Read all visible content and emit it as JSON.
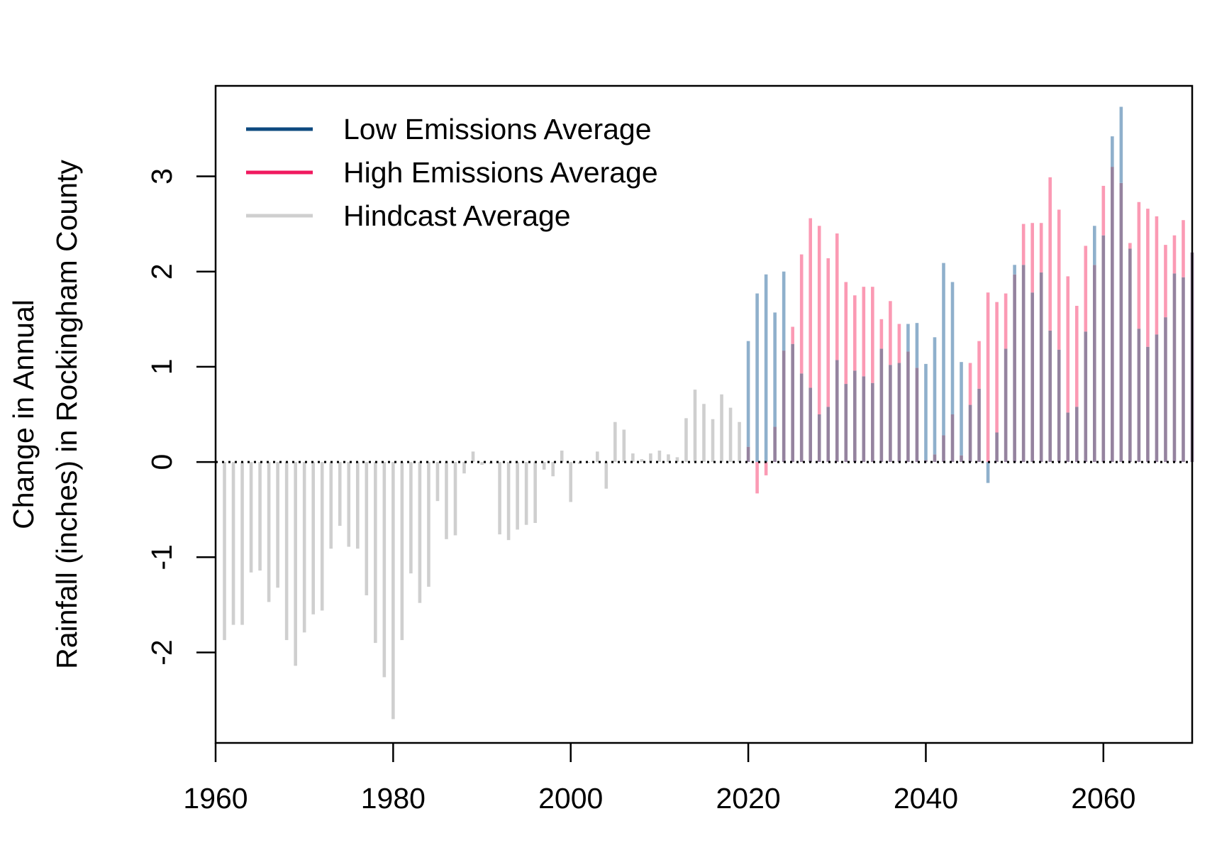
{
  "chart_data": {
    "type": "bar",
    "title": "",
    "xlabel": "",
    "ylabel": [
      "Change in Annual",
      "Rainfall (inches) in Rockingham County"
    ],
    "xlim": [
      1960,
      2070
    ],
    "ylim": [
      -2.95,
      3.95
    ],
    "x_ticks": [
      "1960",
      "1980",
      "2000",
      "2020",
      "2040",
      "2060"
    ],
    "y_ticks": [
      "-2",
      "-1",
      "0",
      "1",
      "2",
      "3"
    ],
    "reference_line": 0,
    "grid": false,
    "legend_position": "top-left",
    "colors": {
      "low": "#0d4a7f",
      "high": "#f0195f",
      "hindcast": "#cfcfcf",
      "low_bar": "#8fb0cc",
      "high_bar": "#fb9ab4",
      "overlap_bar": "#95839f"
    },
    "series": [
      {
        "name": "Low Emissions Average",
        "x": [
          2020,
          2021,
          2022,
          2023,
          2024,
          2025,
          2026,
          2027,
          2028,
          2029,
          2030,
          2031,
          2032,
          2033,
          2034,
          2035,
          2036,
          2037,
          2038,
          2039,
          2040,
          2041,
          2042,
          2043,
          2044,
          2045,
          2046,
          2047,
          2048,
          2049,
          2050,
          2051,
          2052,
          2053,
          2054,
          2055,
          2056,
          2057,
          2058,
          2059,
          2060,
          2061,
          2062,
          2063,
          2064,
          2065,
          2066,
          2067,
          2068,
          2069,
          2070
        ],
        "values": [
          1.27,
          1.77,
          1.97,
          1.57,
          2.0,
          1.24,
          0.93,
          0.78,
          0.5,
          0.58,
          1.07,
          0.82,
          0.96,
          0.9,
          0.83,
          1.19,
          1.02,
          1.04,
          1.45,
          1.46,
          1.03,
          1.31,
          2.09,
          1.89,
          1.05,
          0.6,
          0.77,
          -0.22,
          0.31,
          1.19,
          2.07,
          2.07,
          1.78,
          1.99,
          1.38,
          1.18,
          0.52,
          0.58,
          1.37,
          2.48,
          2.38,
          3.42,
          3.73,
          2.24,
          1.4,
          1.21,
          1.34,
          1.52,
          1.98,
          1.94,
          2.2
        ]
      },
      {
        "name": "High Emissions Average",
        "x": [
          2020,
          2021,
          2022,
          2023,
          2024,
          2025,
          2026,
          2027,
          2028,
          2029,
          2030,
          2031,
          2032,
          2033,
          2034,
          2035,
          2036,
          2037,
          2038,
          2039,
          2040,
          2041,
          2042,
          2043,
          2044,
          2045,
          2046,
          2047,
          2048,
          2049,
          2050,
          2051,
          2052,
          2053,
          2054,
          2055,
          2056,
          2057,
          2058,
          2059,
          2060,
          2061,
          2062,
          2063,
          2064,
          2065,
          2066,
          2067,
          2068,
          2069,
          2070
        ],
        "values": [
          0.16,
          -0.33,
          -0.14,
          0.37,
          1.17,
          1.42,
          2.18,
          2.56,
          2.48,
          2.14,
          2.4,
          1.89,
          1.75,
          1.84,
          1.84,
          1.5,
          1.69,
          1.45,
          1.16,
          0.99,
          0.02,
          0.08,
          0.28,
          0.5,
          0.07,
          1.04,
          1.27,
          1.78,
          1.68,
          1.77,
          1.97,
          2.5,
          2.51,
          2.51,
          2.99,
          2.65,
          1.95,
          1.64,
          2.27,
          2.07,
          2.9,
          3.1,
          2.93,
          2.3,
          2.73,
          2.66,
          2.58,
          2.28,
          2.38,
          2.54,
          2.2
        ]
      },
      {
        "name": "Hindcast Average",
        "x": [
          1961,
          1962,
          1963,
          1964,
          1965,
          1966,
          1967,
          1968,
          1969,
          1970,
          1971,
          1972,
          1973,
          1974,
          1975,
          1976,
          1977,
          1978,
          1979,
          1980,
          1981,
          1982,
          1983,
          1984,
          1985,
          1986,
          1987,
          1988,
          1989,
          1990,
          1991,
          1992,
          1993,
          1994,
          1995,
          1996,
          1997,
          1998,
          1999,
          2000,
          2001,
          2002,
          2003,
          2004,
          2005,
          2006,
          2007,
          2008,
          2009,
          2010,
          2011,
          2012,
          2013,
          2014,
          2015,
          2016,
          2017,
          2018,
          2019
        ],
        "values": [
          -1.87,
          -1.71,
          -1.71,
          -1.16,
          -1.14,
          -1.47,
          -1.32,
          -1.87,
          -2.14,
          -1.79,
          -1.6,
          -1.56,
          -0.91,
          -0.67,
          -0.89,
          -0.91,
          -1.4,
          -1.9,
          -2.26,
          -2.7,
          -1.87,
          -1.17,
          -1.48,
          -1.31,
          -0.41,
          -0.81,
          -0.77,
          -0.12,
          0.11,
          -0.03,
          -0.02,
          -0.76,
          -0.82,
          -0.71,
          -0.66,
          -0.64,
          -0.08,
          -0.15,
          0.12,
          -0.42,
          -0.02,
          0.0,
          0.11,
          -0.28,
          0.42,
          0.34,
          0.09,
          0.03,
          0.09,
          0.12,
          0.08,
          0.05,
          0.46,
          0.76,
          0.61,
          0.45,
          0.71,
          0.57,
          0.42
        ]
      }
    ]
  },
  "legend": {
    "items": [
      {
        "label": "Low Emissions Average",
        "color": "#0d4a7f"
      },
      {
        "label": "High Emissions Average",
        "color": "#f0195f"
      },
      {
        "label": "Hindcast Average",
        "color": "#cfcfcf"
      }
    ]
  }
}
